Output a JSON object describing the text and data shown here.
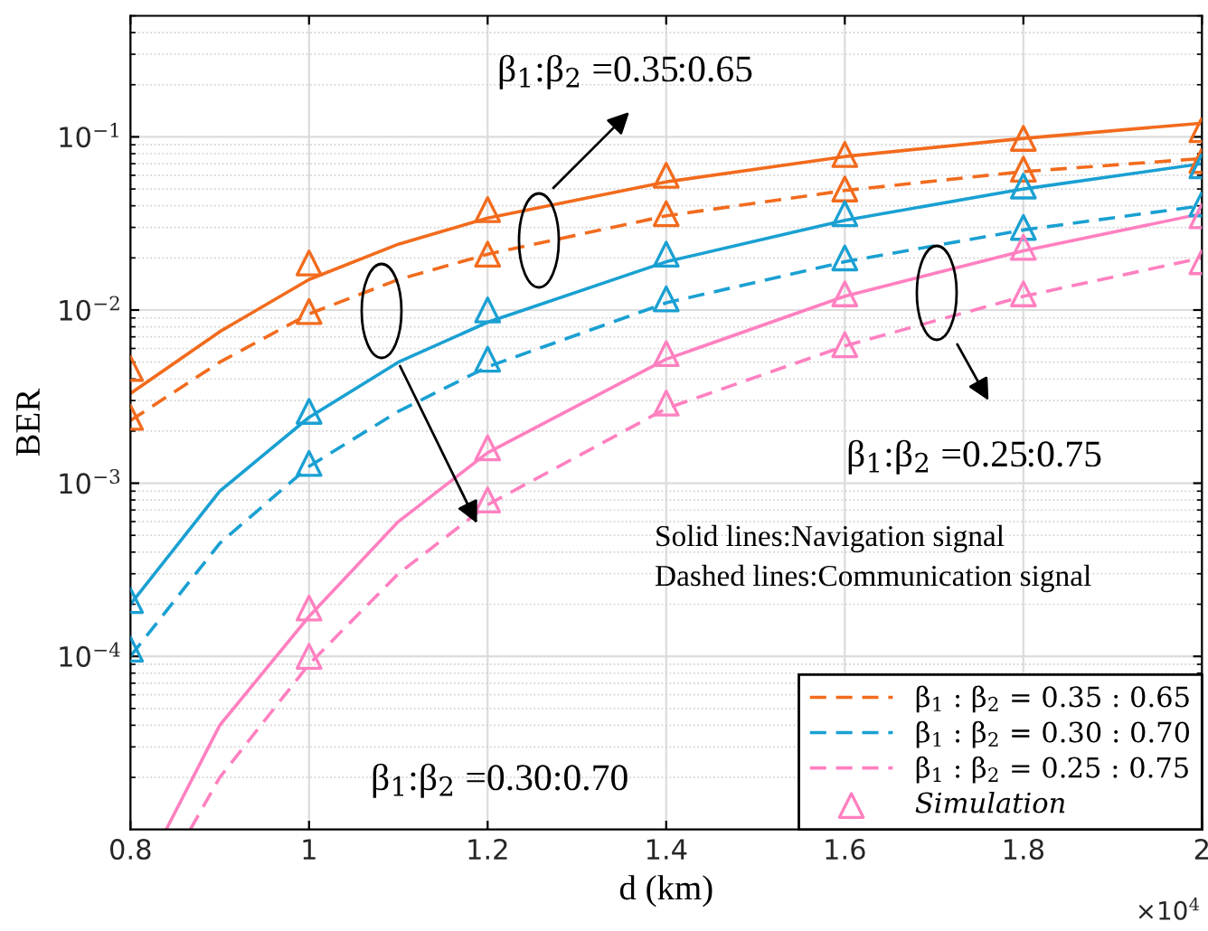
{
  "chart_data": {
    "type": "line",
    "xlabel": "d (km)",
    "ylabel": "BER",
    "log": "y",
    "xlim": [
      0.8,
      2
    ],
    "ylim": [
      1e-05,
      0.5
    ],
    "xticks": [
      0.8,
      1,
      1.2,
      1.4,
      1.6,
      1.8,
      2
    ],
    "yticks": [
      {
        "value": 0.0001,
        "label": "10$^{−4}$"
      },
      {
        "value": 0.001,
        "label": "10$^{−3}$"
      },
      {
        "value": 0.01,
        "label": "10$^{−2}$"
      },
      {
        "value": 0.1,
        "label": "10$^{−1}$"
      }
    ],
    "grid": true,
    "legend": "bottom right",
    "series": [
      {
        "line_style": "solid",
        "color": "#f26b1d",
        "x": [
          0.8,
          0.9,
          1.0,
          1.1,
          1.2,
          1.4,
          1.6,
          1.8,
          2.0
        ],
        "values": [
          0.0033,
          0.0075,
          0.015,
          0.024,
          0.034,
          0.055,
          0.077,
          0.098,
          0.12
        ]
      },
      {
        "line_style": "dashed",
        "name": "β$_{1}$ : β$_{2}$ = 0.35 : 0.65",
        "color": "#f26b1d",
        "x": [
          0.8,
          0.9,
          1.0,
          1.1,
          1.2,
          1.4,
          1.6,
          1.8,
          2.0
        ],
        "values": [
          0.0023,
          0.005,
          0.0095,
          0.015,
          0.021,
          0.035,
          0.049,
          0.063,
          0.075
        ]
      },
      {
        "line_style": "solid",
        "color": "#1aa0d2",
        "x": [
          0.8,
          0.9,
          1.0,
          1.1,
          1.2,
          1.4,
          1.6,
          1.8,
          2.0
        ],
        "values": [
          0.0002,
          0.0009,
          0.0024,
          0.005,
          0.0085,
          0.019,
          0.033,
          0.05,
          0.07
        ]
      },
      {
        "line_style": "dashed",
        "name": "β$_{1}$ : β$_{2}$ = 0.30 : 0.70",
        "color": "#1aa0d2",
        "x": [
          0.8,
          0.9,
          1.0,
          1.1,
          1.2,
          1.4,
          1.6,
          1.8,
          2.0
        ],
        "values": [
          0.0001,
          0.00045,
          0.00125,
          0.0026,
          0.0047,
          0.011,
          0.019,
          0.029,
          0.04
        ]
      },
      {
        "line_style": "solid",
        "color": "#ff80c0",
        "x": [
          0.84,
          0.9,
          1.0,
          1.1,
          1.2,
          1.4,
          1.6,
          1.8,
          2.0
        ],
        "values": [
          1e-05,
          4e-05,
          0.00017,
          0.0006,
          0.0015,
          0.0052,
          0.012,
          0.022,
          0.036
        ]
      },
      {
        "line_style": "dashed",
        "name": "β$_{1}$ : β$_{2}$ = 0.25 : 0.75",
        "color": "#ff80c0",
        "x": [
          0.867,
          0.9,
          1.0,
          1.1,
          1.2,
          1.4,
          1.6,
          1.8,
          2.0
        ],
        "values": [
          1e-05,
          2e-05,
          9e-05,
          0.0003,
          0.00075,
          0.0027,
          0.0062,
          0.012,
          0.02
        ]
      },
      {
        "type": "scatter",
        "marker": "triangle",
        "color": "#f26b1d",
        "x": [
          0.8,
          1.0,
          1.2,
          1.4,
          1.6,
          1.8,
          2.0
        ],
        "values": [
          0.0046,
          0.0187,
          0.038,
          0.06,
          0.079,
          0.098,
          0.11
        ]
      },
      {
        "type": "scatter",
        "marker": "triangle",
        "color": "#f26b1d",
        "x": [
          0.8,
          1.0,
          1.2,
          1.4,
          1.6,
          1.8,
          2.0
        ],
        "values": [
          0.0024,
          0.0098,
          0.021,
          0.036,
          0.05,
          0.065,
          0.073
        ]
      },
      {
        "type": "scatter",
        "marker": "triangle",
        "color": "#1aa0d2",
        "x": [
          0.8,
          1.0,
          1.2,
          1.4,
          1.6,
          1.8,
          2.0
        ],
        "values": [
          0.00021,
          0.0026,
          0.01,
          0.021,
          0.036,
          0.052,
          0.068
        ]
      },
      {
        "type": "scatter",
        "marker": "triangle",
        "color": "#1aa0d2",
        "x": [
          0.8,
          1.0,
          1.2,
          1.4,
          1.6,
          1.8,
          2.0
        ],
        "values": [
          0.00011,
          0.0013,
          0.0052,
          0.0116,
          0.02,
          0.03,
          0.041
        ]
      },
      {
        "type": "scatter",
        "marker": "triangle",
        "color": "#ff80c0",
        "x": [
          1.0,
          1.2,
          1.4,
          1.6,
          1.8,
          2.0
        ],
        "values": [
          0.00019,
          0.0016,
          0.0056,
          0.0124,
          0.023,
          0.035
        ]
      },
      {
        "type": "scatter",
        "marker": "triangle",
        "name": "Simulation",
        "color": "#ff80c0",
        "x": [
          1.0,
          1.2,
          1.4,
          1.6,
          1.8,
          2.0
        ],
        "values": [
          0.0001,
          0.0008,
          0.0029,
          0.0063,
          0.0124,
          0.019
        ]
      }
    ],
    "annotations": [
      "β$_{1}$:β$_{2}$ =0.35:0.65",
      "β$_{1}$:β$_{2}$ =0.30:0.70",
      "β$_{1}$:β$_{2}$ =0.25:0.75",
      "Solid lines:Navigation signal",
      "Dashed lines:Communication signal",
      "×10$^{4}$"
    ]
  }
}
